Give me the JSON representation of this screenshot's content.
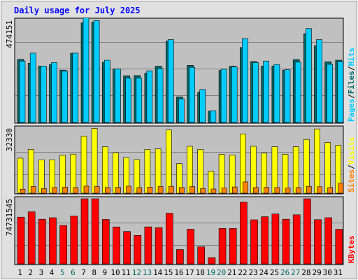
{
  "chart_data": {
    "type": "bar",
    "title": "Daily usage for July 2025",
    "colors": {
      "background": "#c0c0c0",
      "outer_background": "#e0e0e0",
      "title": "#0000ff",
      "hits": "#00ccff",
      "files": "#006666",
      "pages": "#00ccff",
      "sites": "#ff8000",
      "visits": "#ffff00",
      "kbytes": "#ff0000",
      "weekday_label": "#000000",
      "weekend_label": "#006666"
    },
    "categories": [
      "1",
      "2",
      "3",
      "4",
      "5",
      "6",
      "7",
      "8",
      "9",
      "10",
      "11",
      "12",
      "13",
      "14",
      "15",
      "16",
      "17",
      "18",
      "19",
      "20",
      "21",
      "22",
      "23",
      "24",
      "25",
      "26",
      "27",
      "28",
      "29",
      "30",
      "31"
    ],
    "weekend_days": [
      "5",
      "6",
      "12",
      "13",
      "19",
      "20",
      "26",
      "27"
    ],
    "panels": [
      {
        "id": "hits-files-pages",
        "ymax_label": "474151",
        "ymax": 474151,
        "legend": [
          {
            "text": "Pages",
            "color": "#00ccff"
          },
          {
            "text": "/",
            "color": "#000000"
          },
          {
            "text": "Files",
            "color": "#006666"
          },
          {
            "text": "/",
            "color": "#000000"
          },
          {
            "text": "Hits",
            "color": "#00ccff"
          }
        ],
        "series": [
          {
            "key": "files",
            "values": [
              293000,
              275000,
              262000,
              269000,
              243000,
              321000,
              462000,
              466000,
              280000,
              248000,
              217000,
              218000,
              229000,
              261000,
              378000,
              119000,
              265000,
              140000,
              53000,
              242000,
              261000,
              348000,
              283000,
              262000,
              262000,
              243000,
              292000,
              412000,
              356000,
              282000,
              289000
            ]
          },
          {
            "key": "hits",
            "values": [
              285000,
              322000,
              262000,
              278000,
              239000,
              322000,
              485000,
              473000,
              289000,
              248000,
              206000,
              206000,
              240000,
              250000,
              385000,
              110000,
              256000,
              153000,
              55000,
              247000,
              258000,
              389000,
              278000,
              285000,
              269000,
              245000,
              280000,
              436000,
              385000,
              270000,
              283000
            ]
          }
        ]
      },
      {
        "id": "visits-sites",
        "ymax_label": "32330",
        "ymax": 32330,
        "legend": [
          {
            "text": "Sites",
            "color": "#ff8000"
          },
          {
            "text": "/",
            "color": "#000000"
          },
          {
            "text": "Visits",
            "color": "#ffff00"
          }
        ],
        "series": [
          {
            "key": "visits",
            "values": [
              17400,
              21800,
              16600,
              16600,
              18800,
              19400,
              28300,
              32200,
              23100,
              20100,
              17700,
              16700,
              21800,
              22000,
              31400,
              14700,
              23300,
              21800,
              10900,
              19300,
              18900,
              29400,
              23300,
              19900,
              23100,
              19300,
              23100,
              26700,
              31900,
              25200,
              23800
            ]
          },
          {
            "key": "sites",
            "values": [
              2000,
              3300,
              2300,
              2800,
              3000,
              2800,
              3500,
              3300,
              2800,
              2900,
              3500,
              2800,
              3000,
              3300,
              3400,
              2800,
              3300,
              2300,
              2100,
              2600,
              3100,
              5600,
              2800,
              2900,
              2800,
              2600,
              2800,
              3400,
              3200,
              2800,
              5000
            ]
          }
        ]
      },
      {
        "id": "kbytes",
        "ymax_label": "74731545",
        "ymax": 74731545,
        "legend": [
          {
            "text": "KBytes",
            "color": "#ff0000"
          }
        ],
        "series": [
          {
            "key": "kbytes",
            "values": [
              53700,
              59800,
              51300,
              53000,
              44100,
              54800,
              76900,
              78000,
              51000,
              42400,
              37200,
              32700,
              42500,
              41600,
              58100,
              16500,
              39800,
              19600,
              7200,
              40700,
              40700,
              70800,
              50600,
              54200,
              57300,
              51300,
              56400,
              82500,
              50800,
              53000,
              39700
            ]
          }
        ]
      }
    ]
  }
}
